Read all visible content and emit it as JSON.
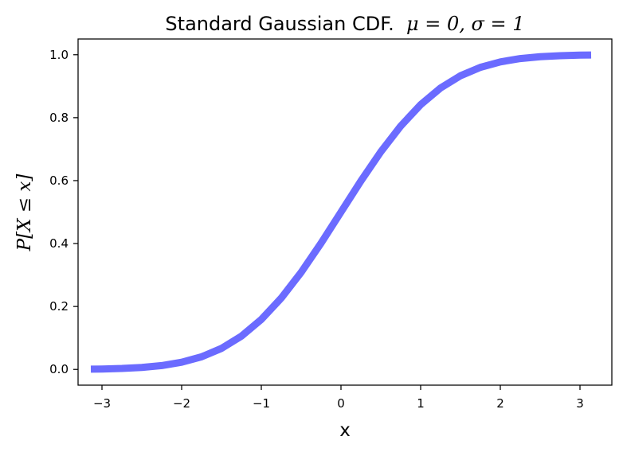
{
  "chart_data": {
    "type": "line",
    "title": {
      "prefix": "Standard Gaussian CDF.  ",
      "math": "μ = 0, σ = 1"
    },
    "xlabel": "x",
    "ylabel": "P[X ≤ x]",
    "xlim": [
      -3.3,
      3.4
    ],
    "ylim": [
      -0.05,
      1.05
    ],
    "x_ticks": [
      -3,
      -2,
      -1,
      0,
      1,
      2,
      3
    ],
    "x_tick_labels": [
      "−3",
      "−2",
      "−1",
      "0",
      "1",
      "2",
      "3"
    ],
    "y_ticks": [
      0.0,
      0.2,
      0.4,
      0.6,
      0.8,
      1.0
    ],
    "y_tick_labels": [
      "0.0",
      "0.2",
      "0.4",
      "0.6",
      "0.8",
      "1.0"
    ],
    "grid": false,
    "line_color": "#6b6bff",
    "series": [
      {
        "x": [
          -3.14,
          -3.0,
          -2.75,
          -2.5,
          -2.25,
          -2.0,
          -1.75,
          -1.5,
          -1.25,
          -1.0,
          -0.75,
          -0.5,
          -0.25,
          0.0,
          0.25,
          0.5,
          0.75,
          1.0,
          1.25,
          1.5,
          1.75,
          2.0,
          2.25,
          2.5,
          2.75,
          3.0,
          3.14
        ],
        "y": [
          0.0008,
          0.0013,
          0.003,
          0.0062,
          0.0122,
          0.0228,
          0.0401,
          0.0668,
          0.1056,
          0.1587,
          0.2266,
          0.3085,
          0.4013,
          0.5,
          0.5987,
          0.6915,
          0.7734,
          0.8413,
          0.8944,
          0.9332,
          0.9599,
          0.9772,
          0.9878,
          0.9938,
          0.997,
          0.9987,
          0.9992
        ]
      }
    ]
  }
}
